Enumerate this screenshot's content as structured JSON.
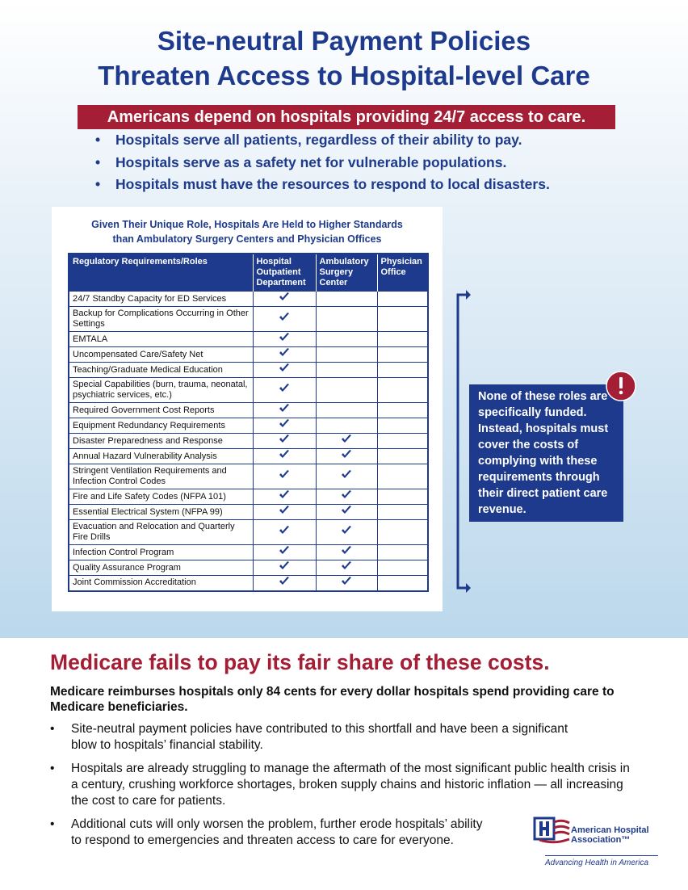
{
  "header": {
    "title": [
      "Site-neutral Payment Policies",
      "Threaten Access to Hospital-level Care"
    ],
    "banner": "Americans depend on hospitals providing 24/7 access to care.",
    "bullets": [
      "Hospitals serve all patients, regardless of their ability to pay.",
      "Hospitals serve as a safety net for vulnerable populations.",
      "Hospitals must have the resources to respond to local disasters."
    ]
  },
  "table": {
    "title": [
      "Given Their Unique Role, Hospitals Are Held to Higher Standards",
      "than Ambulatory Surgery Centers and Physician Offices"
    ],
    "headers": [
      "Regulatory Requirements/Roles",
      "Hospital Outpatient Department",
      "Ambulatory Surgery Center",
      "Physician Office"
    ],
    "rows": [
      {
        "label": "24/7 Standby Capacity for ED Services",
        "checks": [
          true,
          false,
          false
        ]
      },
      {
        "label": "Backup for Complications Occurring in Other Settings",
        "checks": [
          true,
          false,
          false
        ]
      },
      {
        "label": "EMTALA",
        "checks": [
          true,
          false,
          false
        ]
      },
      {
        "label": "Uncompensated Care/Safety Net",
        "checks": [
          true,
          false,
          false
        ]
      },
      {
        "label": "Teaching/Graduate Medical Education",
        "checks": [
          true,
          false,
          false
        ]
      },
      {
        "label": "Special Capabilities (burn, trauma, neonatal, psychiatric services, etc.)",
        "checks": [
          true,
          false,
          false
        ]
      },
      {
        "label": "Required Government Cost Reports",
        "checks": [
          true,
          false,
          false
        ]
      },
      {
        "label": "Equipment Redundancy Requirements",
        "checks": [
          true,
          false,
          false
        ]
      },
      {
        "label": "Disaster Preparedness and Response",
        "checks": [
          true,
          true,
          false
        ]
      },
      {
        "label": "Annual Hazard Vulnerability Analysis",
        "checks": [
          true,
          true,
          false
        ]
      },
      {
        "label": "Stringent Ventilation Requirements and Infection Control Codes",
        "checks": [
          true,
          true,
          false
        ]
      },
      {
        "label": "Fire and Life Safety Codes (NFPA 101)",
        "checks": [
          true,
          true,
          false
        ]
      },
      {
        "label": "Essential Electrical System (NFPA 99)",
        "checks": [
          true,
          true,
          false
        ]
      },
      {
        "label": "Evacuation and Relocation and Quarterly Fire Drills",
        "checks": [
          true,
          true,
          false
        ]
      },
      {
        "label": "Infection Control Program",
        "checks": [
          true,
          true,
          false
        ]
      },
      {
        "label": "Quality Assurance Program",
        "checks": [
          true,
          true,
          false
        ]
      },
      {
        "label": "Joint Commission Accreditation",
        "checks": [
          true,
          true,
          false
        ]
      }
    ]
  },
  "callout": "None of these roles are specifically funded. Instead, hospitals must cover the costs of complying with these requirements through their direct patient care revenue.",
  "section": {
    "heading": "Medicare fails to pay its fair share of these costs.",
    "lead": "Medicare reimburses hospitals only 84 cents for every dollar hospitals spend providing care to Medicare beneficiaries.",
    "bullets": [
      "Site-neutral payment policies have contributed to this shortfall and have been a significant blow to hospitals’ financial stability.",
      "Hospitals are already struggling to manage the aftermath of the most significant public health crisis in a century, crushing workforce shortages, broken supply chains and historic inflation — all increasing the cost to care for patients.",
      "Additional cuts will only worsen the problem, further erode hospitals’ ability to respond to emergencies and threaten access to care for everyone."
    ]
  },
  "logo": {
    "name": [
      "American Hospital",
      "Association™"
    ],
    "tagline": "Advancing Health in America"
  }
}
